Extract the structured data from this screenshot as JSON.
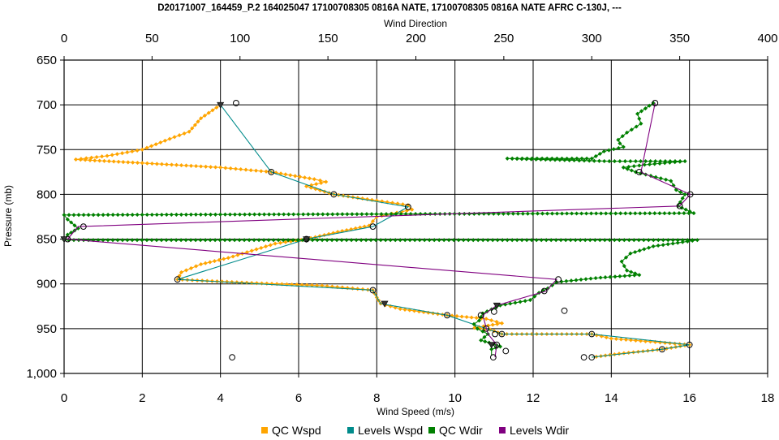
{
  "chart_data": {
    "type": "line",
    "title": "D20171007_164459_P.2 164025047 17100708305 0816A NATE, 17100708305 0816A NATE AFRC C-130J, ---",
    "xlabel_bottom": "Wind Speed (m/s)",
    "xlabel_top": "Wind Direction",
    "ylabel": "Pressure (mb)",
    "xlim_bottom": [
      0,
      18
    ],
    "xlim_top": [
      0,
      400
    ],
    "ylim": [
      1000,
      650
    ],
    "y_inverted": true,
    "grid": true,
    "legend_position": "bottom",
    "x_ticks_bottom": [
      "0",
      "2",
      "4",
      "6",
      "8",
      "10",
      "12",
      "14",
      "16",
      "18"
    ],
    "x_ticks_top": [
      "0",
      "50",
      "100",
      "150",
      "200",
      "250",
      "300",
      "350",
      "400"
    ],
    "y_ticks": [
      "650",
      "700",
      "750",
      "800",
      "850",
      "900",
      "950",
      "1,000"
    ],
    "colors": {
      "qc_wspd": "#FFA500",
      "levels_wspd": "#008B8B",
      "qc_wdir": "#008000",
      "levels_wdir": "#800080",
      "grid": "#000000"
    },
    "legend": [
      "QC Wspd",
      "Levels Wspd",
      "QC Wdir",
      "Levels Wdir"
    ],
    "series": [
      {
        "name": "QC Wspd",
        "axis": "bottom",
        "points": [
          [
            4.0,
            700
          ],
          [
            3.5,
            715
          ],
          [
            3.2,
            730
          ],
          [
            2.7,
            738
          ],
          [
            2.0,
            750
          ],
          [
            1.1,
            757
          ],
          [
            0.3,
            761
          ],
          [
            2.0,
            765
          ],
          [
            4.0,
            770
          ],
          [
            5.3,
            775
          ],
          [
            6.4,
            783
          ],
          [
            6.7,
            786
          ],
          [
            6.2,
            791
          ],
          [
            6.9,
            800
          ],
          [
            8.0,
            807
          ],
          [
            8.8,
            812
          ],
          [
            8.9,
            817
          ],
          [
            8.0,
            825
          ],
          [
            7.8,
            835
          ],
          [
            7.0,
            842
          ],
          [
            6.2,
            850
          ],
          [
            5.4,
            855
          ],
          [
            4.8,
            863
          ],
          [
            4.2,
            871
          ],
          [
            3.5,
            878
          ],
          [
            3.0,
            887
          ],
          [
            2.9,
            895
          ],
          [
            4.8,
            899
          ],
          [
            6.6,
            902
          ],
          [
            7.9,
            907
          ],
          [
            8.0,
            915
          ],
          [
            8.1,
            922
          ],
          [
            8.6,
            928
          ],
          [
            9.8,
            935
          ],
          [
            10.8,
            939
          ],
          [
            11.2,
            944
          ],
          [
            10.5,
            949
          ],
          [
            10.9,
            951
          ],
          [
            11.2,
            956
          ],
          [
            13.5,
            956
          ],
          [
            14.0,
            961
          ],
          [
            16.0,
            968
          ],
          [
            15.3,
            973
          ],
          [
            14.2,
            978
          ],
          [
            13.5,
            982
          ]
        ]
      },
      {
        "name": "Levels Wspd",
        "axis": "bottom",
        "points": [
          [
            4.0,
            700
          ],
          [
            5.3,
            775
          ],
          [
            6.9,
            800
          ],
          [
            8.8,
            814
          ],
          [
            7.9,
            836
          ],
          [
            6.2,
            850
          ],
          [
            2.9,
            895
          ],
          [
            7.9,
            907
          ],
          [
            8.1,
            922
          ],
          [
            9.8,
            935
          ],
          [
            10.8,
            950
          ],
          [
            11.2,
            956
          ],
          [
            13.5,
            956
          ],
          [
            16.0,
            968
          ],
          [
            15.3,
            973
          ],
          [
            13.5,
            982
          ]
        ]
      },
      {
        "name": "QC Wdir",
        "axis": "top",
        "points": [
          [
            335,
            698
          ],
          [
            326,
            710
          ],
          [
            328,
            721
          ],
          [
            320,
            731
          ],
          [
            315,
            739
          ],
          [
            316,
            743
          ],
          [
            318,
            747
          ],
          [
            307,
            752
          ],
          [
            300,
            760
          ],
          [
            252,
            760
          ],
          [
            290,
            762
          ],
          [
            310,
            763
          ],
          [
            325,
            763
          ],
          [
            353,
            763
          ],
          [
            330,
            767
          ],
          [
            318,
            770
          ],
          [
            325,
            775
          ],
          [
            345,
            785
          ],
          [
            348,
            795
          ],
          [
            353,
            800
          ],
          [
            349,
            813
          ],
          [
            358,
            821
          ],
          [
            0,
            823
          ],
          [
            2,
            828
          ],
          [
            8,
            838
          ],
          [
            2,
            845
          ],
          [
            0,
            851
          ],
          [
            360,
            851
          ],
          [
            335,
            858
          ],
          [
            322,
            866
          ],
          [
            317,
            875
          ],
          [
            320,
            885
          ],
          [
            327,
            890
          ],
          [
            305,
            893
          ],
          [
            280,
            898
          ],
          [
            275,
            905
          ],
          [
            270,
            910
          ],
          [
            265,
            918
          ],
          [
            248,
            924
          ],
          [
            238,
            933
          ],
          [
            236,
            941
          ],
          [
            233,
            945
          ],
          [
            235,
            950
          ],
          [
            241,
            956
          ],
          [
            237,
            963
          ],
          [
            244,
            967
          ],
          [
            248,
            970
          ],
          [
            243,
            973
          ],
          [
            243,
            980
          ]
        ]
      },
      {
        "name": "Levels Wdir",
        "axis": "top",
        "points": [
          [
            336,
            698
          ],
          [
            328,
            775
          ],
          [
            356,
            800
          ],
          [
            350,
            813
          ],
          [
            8,
            836
          ],
          [
            2,
            850
          ],
          [
            280,
            895
          ],
          [
            274,
            908
          ],
          [
            246,
            924
          ],
          [
            238,
            935
          ],
          [
            241,
            956
          ],
          [
            246,
            968
          ],
          [
            245,
            982
          ]
        ]
      }
    ],
    "markers": {
      "circles": [
        [
          "bottom",
          4.4,
          698
        ],
        [
          "bottom",
          5.3,
          775
        ],
        [
          "bottom",
          6.9,
          800
        ],
        [
          "bottom",
          8.8,
          814
        ],
        [
          "bottom",
          7.9,
          836
        ],
        [
          "bottom",
          6.2,
          850
        ],
        [
          "bottom",
          2.9,
          895
        ],
        [
          "bottom",
          7.9,
          907
        ],
        [
          "bottom",
          9.8,
          935
        ],
        [
          "bottom",
          10.8,
          950
        ],
        [
          "bottom",
          11.2,
          956
        ],
        [
          "bottom",
          13.5,
          956
        ],
        [
          "bottom",
          16.0,
          968
        ],
        [
          "bottom",
          15.3,
          973
        ],
        [
          "bottom",
          13.5,
          982
        ],
        [
          "bottom",
          11.0,
          931
        ],
        [
          "bottom",
          12.8,
          930
        ],
        [
          "bottom",
          11.3,
          975
        ],
        [
          "bottom",
          4.3,
          982
        ],
        [
          "bottom",
          13.3,
          982
        ],
        [
          "top",
          336,
          698
        ],
        [
          "top",
          327,
          775
        ],
        [
          "top",
          356,
          800
        ],
        [
          "top",
          350,
          813
        ],
        [
          "top",
          11,
          836
        ],
        [
          "top",
          2,
          850
        ],
        [
          "top",
          281,
          895
        ],
        [
          "top",
          273,
          908
        ],
        [
          "top",
          237,
          935
        ],
        [
          "top",
          245,
          956
        ],
        [
          "top",
          246,
          968
        ],
        [
          "top",
          244,
          982
        ]
      ],
      "triangles": [
        [
          "bottom",
          4.0,
          700
        ],
        [
          "bottom",
          6.2,
          850
        ],
        [
          "bottom",
          8.2,
          922
        ],
        [
          "top",
          246,
          924
        ],
        [
          "top",
          243,
          968
        ],
        [
          "top",
          0,
          850
        ]
      ]
    }
  }
}
